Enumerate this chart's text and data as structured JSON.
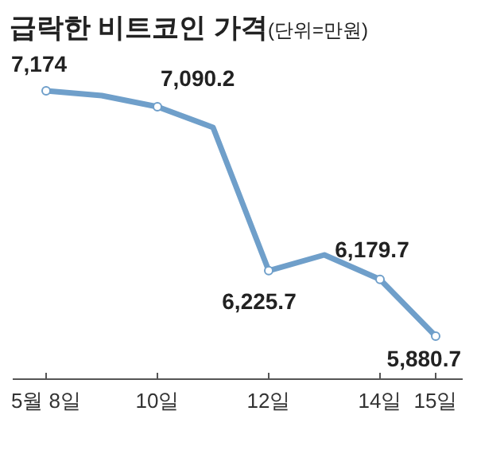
{
  "chart_data": {
    "type": "line",
    "title": "급락한 비트코인 가격",
    "subtitle": "(단위=만원)",
    "categories": [
      "5월 8일",
      null,
      "10일",
      null,
      "12일",
      null,
      "14일",
      "15일"
    ],
    "series": [
      {
        "color": "#6f9fca",
        "values": [
          7174,
          7149,
          7090.2,
          6981,
          6225.7,
          6309,
          6179.7,
          5880.7
        ],
        "value_labels": [
          "7,174",
          null,
          "7,090.2",
          null,
          "6,225.7",
          null,
          "6,179.7",
          "5,880.7"
        ]
      }
    ],
    "marker": "circle",
    "line_style": "solid"
  }
}
